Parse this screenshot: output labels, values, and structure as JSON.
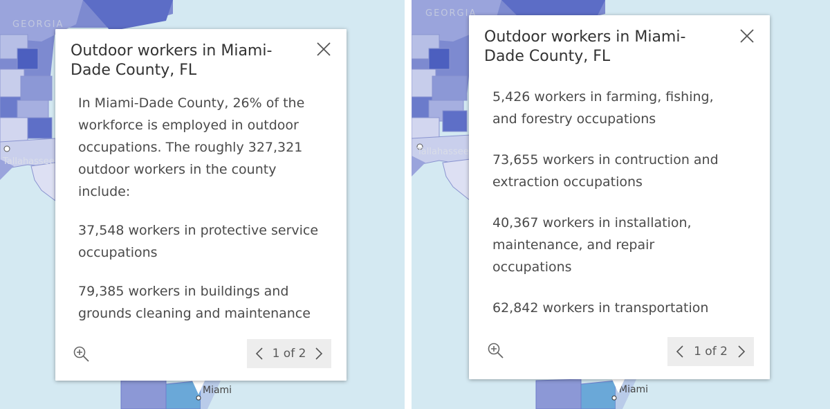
{
  "map": {
    "state_label": "GEORGIA",
    "city_miami": "Miami",
    "city_tallahassee": "Tallahassee",
    "colors": {
      "water": "#d4e9f2",
      "land": "#f2f1ee",
      "choro_dark": "#5a6cc4",
      "choro_mid": "#8c98d6",
      "choro_light": "#c5cbea"
    }
  },
  "popups": [
    {
      "title": "Outdoor workers in Miami-Dade County, FL",
      "title_line1": "Outdoor workers in Miami-",
      "title_line2": "Dade County, FL",
      "paragraphs": [
        [
          "In Miami-Dade County, 26% of the",
          "workforce is employed in outdoor",
          "occupations. The roughly 327,321",
          "outdoor workers in the county",
          "include:"
        ],
        [
          "37,548 workers in protective service",
          "occupations"
        ],
        [
          "79,385 workers in buildings and",
          "grounds cleaning and maintenance"
        ]
      ],
      "pager_text": "1 of 2",
      "icons": {
        "zoom": "zoom-in-icon",
        "close": "close-icon",
        "prev": "chevron-left-icon",
        "next": "chevron-right-icon"
      }
    },
    {
      "title": "Outdoor workers in Miami-Dade County, FL",
      "title_line1": "Outdoor workers in Miami-",
      "title_line2": "Dade County, FL",
      "paragraphs": [
        [
          "5,426 workers in farming, fishing,",
          "and forestry occupations"
        ],
        [
          "73,655 workers in contruction and",
          "extraction occupations"
        ],
        [
          "40,367 workers in installation,",
          "maintenance, and repair",
          "occupations"
        ],
        [
          "62,842 workers in transportation"
        ]
      ],
      "pager_text": "1 of 2",
      "icons": {
        "zoom": "zoom-in-icon",
        "close": "close-icon",
        "prev": "chevron-left-icon",
        "next": "chevron-right-icon"
      }
    }
  ]
}
